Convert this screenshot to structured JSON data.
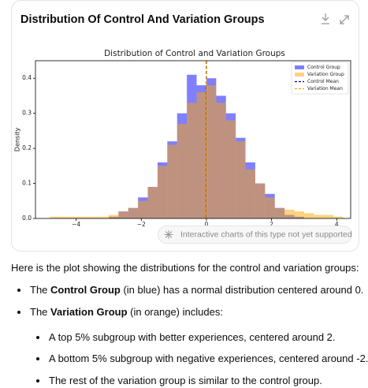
{
  "header": {
    "title": "Distribution Of Control And Variation Groups"
  },
  "chart_data": {
    "type": "histogram",
    "title": "Distribution of Control and Variation Groups",
    "y_label": "Density",
    "bins": [
      -4.8,
      -4.5,
      -4.2,
      -3.9,
      -3.6,
      -3.3,
      -3.0,
      -2.7,
      -2.4,
      -2.1,
      -1.8,
      -1.5,
      -1.2,
      -0.9,
      -0.6,
      -0.3,
      0,
      0.3,
      0.6,
      0.9,
      1.2,
      1.5,
      1.8,
      2.1,
      2.4,
      2.7,
      3.0,
      3.3,
      3.6,
      3.9,
      4.2
    ],
    "series": [
      {
        "name": "Control Group",
        "color": "#0000ff",
        "alpha": 0.5,
        "values": [
          0,
          0,
          0,
          0,
          0,
          0,
          0.005,
          0.02,
          0.03,
          0.06,
          0.09,
          0.16,
          0.22,
          0.3,
          0.41,
          0.38,
          0.4,
          0.35,
          0.3,
          0.23,
          0.16,
          0.1,
          0.07,
          0.03,
          0.01,
          0.005,
          0,
          0,
          0,
          0
        ]
      },
      {
        "name": "Variation Group",
        "color": "#ffa500",
        "alpha": 0.5,
        "values": [
          0.005,
          0.005,
          0.005,
          0.005,
          0.005,
          0.005,
          0.01,
          0.02,
          0.03,
          0.05,
          0.09,
          0.15,
          0.21,
          0.27,
          0.33,
          0.36,
          0.38,
          0.33,
          0.28,
          0.22,
          0.14,
          0.1,
          0.06,
          0.03,
          0.025,
          0.02,
          0.015,
          0.01,
          0.01,
          0.005
        ]
      }
    ],
    "mean_lines": [
      {
        "name": "Control Mean",
        "color": "#00008b",
        "value": 0.0
      },
      {
        "name": "Variation Mean",
        "color": "#ffa500",
        "value": 0.01
      }
    ],
    "xlim": [
      -5.25,
      4.43
    ],
    "ylim": [
      0,
      0.45
    ],
    "xticks": [
      {
        "value": -4,
        "label": "−4"
      },
      {
        "value": -2,
        "label": "−2"
      },
      0,
      2,
      4
    ],
    "yticks": [
      {
        "value": 0,
        "label": "0.0"
      },
      {
        "value": 0.1,
        "label": "0.1"
      },
      {
        "value": 0.2,
        "label": "0.2"
      },
      {
        "value": 0.3,
        "label": "0.3"
      },
      {
        "value": 0.4,
        "label": "0.4"
      }
    ],
    "grid": false,
    "legend": "upper right"
  },
  "notice": "Interactive charts of this type not yet supported",
  "text": {
    "intro": "Here is the plot showing the distributions for the control and variation groups:",
    "bullets": [
      {
        "before": "The ",
        "bold": "Control Group",
        "after": " (in blue) has a normal distribution centered around 0."
      },
      {
        "before": "The ",
        "bold": "Variation Group",
        "after": " (in orange) includes:",
        "items": [
          "A top 5% subgroup with better experiences, centered around 2.",
          "A bottom 5% subgroup with negative experiences, centered around -2.",
          "The rest of the variation group is similar to the control group."
        ]
      }
    ]
  }
}
